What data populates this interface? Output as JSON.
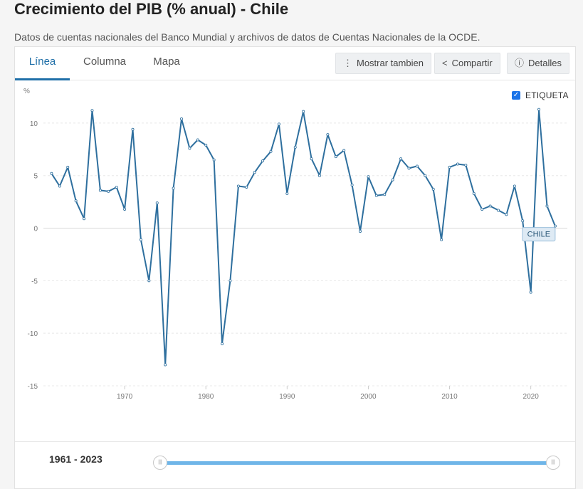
{
  "header": {
    "title": "Crecimiento del PIB (% anual) - Chile",
    "subtitle": "Datos de cuentas nacionales del Banco Mundial y archivos de datos de Cuentas Nacionales de la OCDE."
  },
  "tabs": [
    {
      "label": "Línea",
      "active": true
    },
    {
      "label": "Columna",
      "active": false
    },
    {
      "label": "Mapa",
      "active": false
    }
  ],
  "toolbar": {
    "show_also": "Mostrar tambien",
    "share": "Compartir",
    "details": "Detalles"
  },
  "legend": {
    "label": "ETIQUETA",
    "checked": true
  },
  "colors": {
    "line": "#2e6f9e",
    "accent": "#1f6fa8"
  },
  "footer": {
    "range_start": "1961",
    "range_separator": "-",
    "range_end": "2023"
  },
  "chart_data": {
    "type": "line",
    "ylabel": "%",
    "ylim": [
      -15,
      12.5
    ],
    "xlim": [
      1960,
      2024.5
    ],
    "yticks": [
      -15,
      -10,
      -5,
      0,
      5,
      10
    ],
    "xticks": [
      1970,
      1980,
      1990,
      2000,
      2010,
      2020
    ],
    "grid": true,
    "series_label": "CHILE",
    "series": [
      {
        "name": "CHILE",
        "x": [
          1961,
          1962,
          1963,
          1964,
          1965,
          1966,
          1967,
          1968,
          1969,
          1970,
          1971,
          1972,
          1973,
          1974,
          1975,
          1976,
          1977,
          1978,
          1979,
          1980,
          1981,
          1982,
          1983,
          1984,
          1985,
          1986,
          1987,
          1988,
          1989,
          1990,
          1991,
          1992,
          1993,
          1994,
          1995,
          1996,
          1997,
          1998,
          1999,
          2000,
          2001,
          2002,
          2003,
          2004,
          2005,
          2006,
          2007,
          2008,
          2009,
          2010,
          2011,
          2012,
          2013,
          2014,
          2015,
          2016,
          2017,
          2018,
          2019,
          2020,
          2021,
          2022,
          2023
        ],
        "values": [
          5.2,
          4.0,
          5.8,
          2.6,
          0.9,
          11.2,
          3.6,
          3.5,
          3.9,
          1.8,
          9.4,
          -1.1,
          -5.0,
          2.4,
          -13.0,
          3.8,
          10.4,
          7.6,
          8.4,
          7.9,
          6.5,
          -11.0,
          -5.0,
          4.0,
          3.9,
          5.3,
          6.4,
          7.3,
          9.9,
          3.3,
          7.7,
          11.1,
          6.6,
          5.0,
          8.9,
          6.8,
          7.4,
          4.1,
          -0.3,
          4.9,
          3.1,
          3.2,
          4.6,
          6.6,
          5.7,
          5.9,
          5.0,
          3.7,
          -1.1,
          5.8,
          6.1,
          6.0,
          3.3,
          1.8,
          2.1,
          1.7,
          1.3,
          4.0,
          0.7,
          -6.1,
          11.3,
          2.1,
          0.2
        ]
      }
    ]
  }
}
